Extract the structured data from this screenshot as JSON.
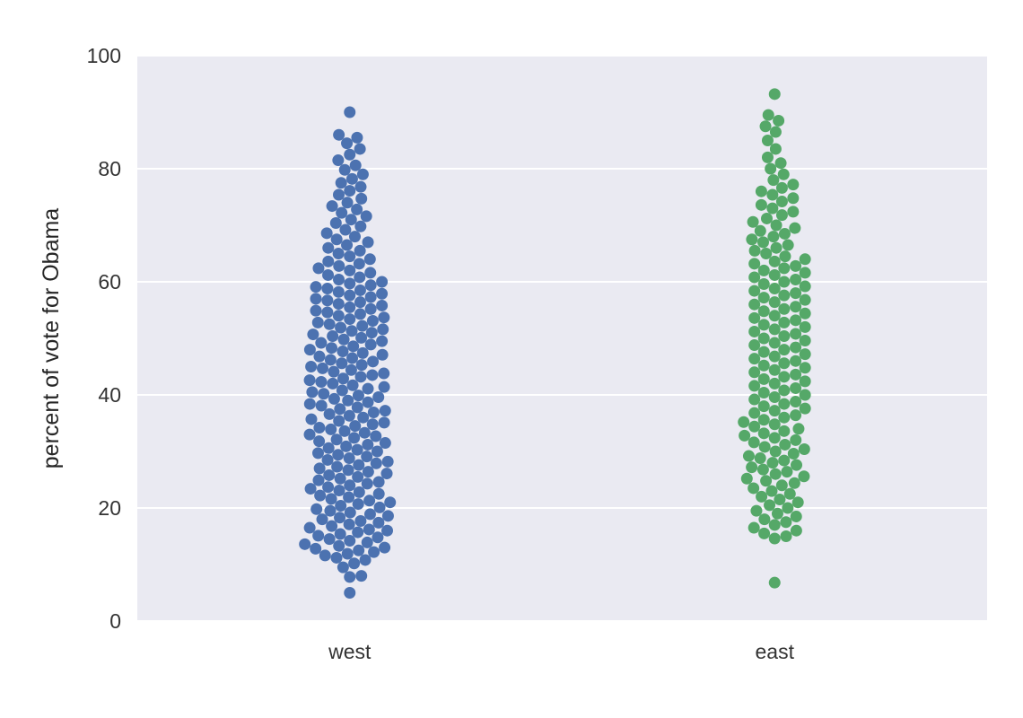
{
  "chart_data": {
    "type": "scatter",
    "subtype": "swarm",
    "title": "",
    "xlabel": "",
    "ylabel": "percent of vote for Obama",
    "ylim": [
      0,
      100
    ],
    "y_ticks": [
      0,
      20,
      40,
      60,
      80,
      100
    ],
    "grid": true,
    "legend": "none",
    "background_color": "#EAEAF2",
    "grid_color": "#FFFFFF",
    "categories": [
      "west",
      "east"
    ],
    "series": [
      {
        "category": "west",
        "color": "#4C72B0",
        "values": [
          5.0,
          7.8,
          8.0,
          9.5,
          10.2,
          10.8,
          11.2,
          11.6,
          11.9,
          12.2,
          12.5,
          12.8,
          13.0,
          13.3,
          13.6,
          13.9,
          14.2,
          14.5,
          14.8,
          15.1,
          15.4,
          15.7,
          16.0,
          16.2,
          16.5,
          16.8,
          17.1,
          17.4,
          17.7,
          18.0,
          18.3,
          18.6,
          18.9,
          19.2,
          19.5,
          19.8,
          20.1,
          20.4,
          20.7,
          21.0,
          21.3,
          21.6,
          21.9,
          22.2,
          22.5,
          22.8,
          23.1,
          23.4,
          23.7,
          24.0,
          24.3,
          24.6,
          24.9,
          25.2,
          25.5,
          25.8,
          26.1,
          26.4,
          26.7,
          27.0,
          27.3,
          27.6,
          27.9,
          28.2,
          28.5,
          28.8,
          29.1,
          29.4,
          29.7,
          30.0,
          30.3,
          30.6,
          30.9,
          31.2,
          31.5,
          31.8,
          32.1,
          32.4,
          32.7,
          33.0,
          33.3,
          33.6,
          33.9,
          34.2,
          34.5,
          34.8,
          35.1,
          35.4,
          35.7,
          36.0,
          36.3,
          36.6,
          36.9,
          37.2,
          37.5,
          37.8,
          38.1,
          38.4,
          38.7,
          39.0,
          39.3,
          39.6,
          39.9,
          40.2,
          40.5,
          40.8,
          41.1,
          41.4,
          41.7,
          42.0,
          42.3,
          42.6,
          42.9,
          43.2,
          43.5,
          43.8,
          44.1,
          44.4,
          44.7,
          45.0,
          45.3,
          45.6,
          45.9,
          46.2,
          46.5,
          46.8,
          47.1,
          47.4,
          47.7,
          48.0,
          48.3,
          48.6,
          48.9,
          49.2,
          49.5,
          49.8,
          50.1,
          50.4,
          50.7,
          51.0,
          51.3,
          51.6,
          51.9,
          52.2,
          52.5,
          52.8,
          53.1,
          53.4,
          53.7,
          54.0,
          54.3,
          54.6,
          54.9,
          55.2,
          55.5,
          55.8,
          56.1,
          56.4,
          56.7,
          57.0,
          57.3,
          57.6,
          57.9,
          58.2,
          58.5,
          58.8,
          59.1,
          59.4,
          59.7,
          60.0,
          60.4,
          60.8,
          61.2,
          61.6,
          62.0,
          62.4,
          62.8,
          63.2,
          63.6,
          64.0,
          64.5,
          65.0,
          65.5,
          66.0,
          66.5,
          67.0,
          67.5,
          68.0,
          68.6,
          69.2,
          69.8,
          70.4,
          71.0,
          71.6,
          72.2,
          72.8,
          73.4,
          74.0,
          74.7,
          75.4,
          76.1,
          76.8,
          77.5,
          78.2,
          79.0,
          79.8,
          80.6,
          81.5,
          82.5,
          83.5,
          84.5,
          85.5,
          86.0,
          90.0
        ]
      },
      {
        "category": "east",
        "color": "#55A868",
        "values": [
          6.8,
          14.6,
          15.0,
          15.5,
          16.0,
          16.5,
          17.0,
          17.5,
          18.0,
          18.5,
          19.0,
          19.5,
          20.0,
          20.5,
          21.0,
          21.5,
          22.0,
          22.5,
          23.0,
          23.5,
          24.0,
          24.4,
          24.8,
          25.2,
          25.6,
          26.0,
          26.4,
          26.8,
          27.2,
          27.6,
          28.0,
          28.4,
          28.8,
          29.2,
          29.6,
          30.0,
          30.4,
          30.8,
          31.2,
          31.6,
          32.0,
          32.4,
          32.8,
          33.2,
          33.6,
          34.0,
          34.4,
          34.8,
          35.2,
          35.6,
          36.0,
          36.4,
          36.8,
          37.2,
          37.6,
          38.0,
          38.4,
          38.8,
          39.2,
          39.6,
          40.0,
          40.4,
          40.8,
          41.2,
          41.6,
          42.0,
          42.4,
          42.8,
          43.2,
          43.6,
          44.0,
          44.4,
          44.8,
          45.2,
          45.6,
          46.0,
          46.4,
          46.8,
          47.2,
          47.6,
          48.0,
          48.4,
          48.8,
          49.2,
          49.6,
          50.0,
          50.4,
          50.8,
          51.2,
          51.6,
          52.0,
          52.4,
          52.8,
          53.2,
          53.6,
          54.0,
          54.4,
          54.8,
          55.2,
          55.6,
          56.0,
          56.4,
          56.8,
          57.2,
          57.6,
          58.0,
          58.4,
          58.8,
          59.2,
          59.6,
          60.0,
          60.4,
          60.8,
          61.2,
          61.6,
          62.0,
          62.4,
          62.8,
          63.2,
          63.6,
          64.0,
          64.5,
          65.0,
          65.5,
          66.0,
          66.5,
          67.0,
          67.5,
          68.0,
          68.5,
          69.0,
          69.5,
          70.0,
          70.6,
          71.2,
          71.8,
          72.4,
          73.0,
          73.6,
          74.2,
          74.8,
          75.4,
          76.0,
          76.6,
          77.2,
          78.0,
          79.0,
          80.0,
          81.0,
          82.0,
          83.5,
          85.0,
          86.5,
          87.5,
          88.5,
          89.5,
          93.2
        ]
      }
    ]
  }
}
